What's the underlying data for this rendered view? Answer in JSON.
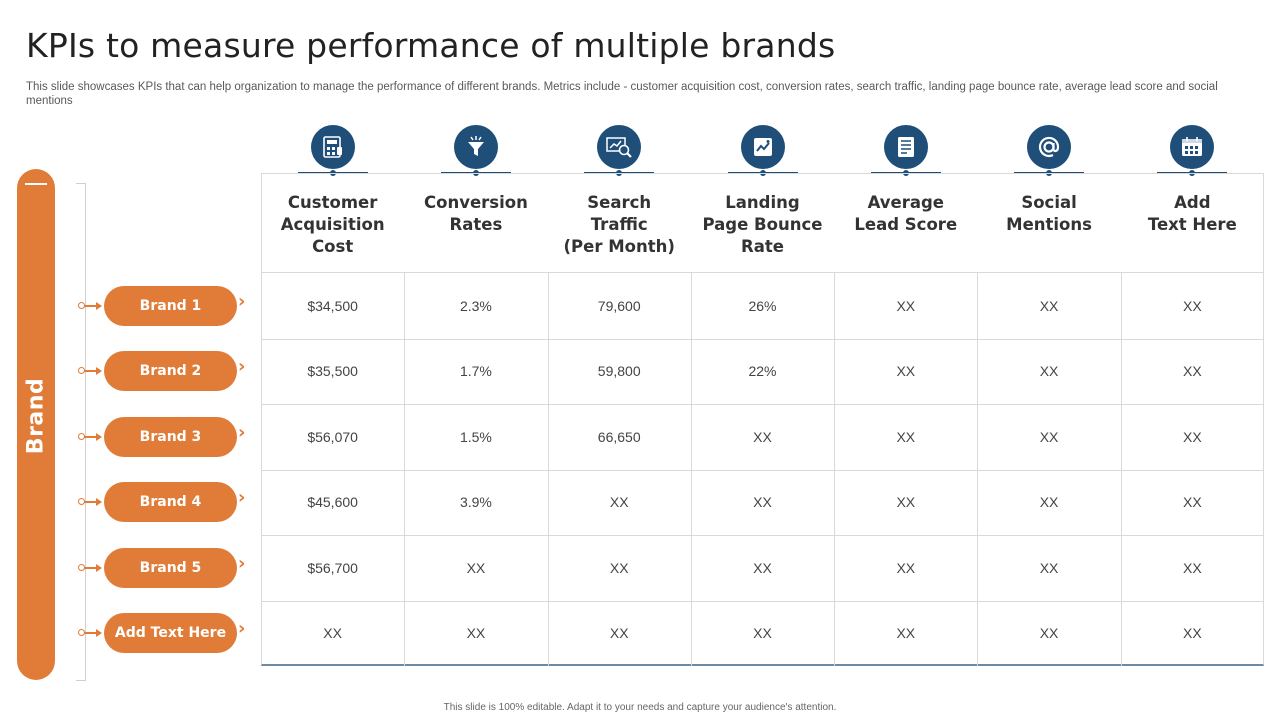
{
  "title": "KPIs to measure performance of multiple brands",
  "subtitle": "This slide showcases KPIs that can help organization to manage the performance of different brands. Metrics include - customer acquisition cost, conversion rates, search traffic, landing page bounce rate, average lead score and social mentions",
  "brand_label": "Brand",
  "kpis": [
    {
      "label": "Customer\nAcquisition\nCost",
      "icon": "calculator-icon"
    },
    {
      "label": "Conversion\nRates",
      "icon": "funnel-icon"
    },
    {
      "label": "Search\nTraffic\n(Per Month)",
      "icon": "search-chart-icon"
    },
    {
      "label": "Landing\nPage Bounce\nRate",
      "icon": "landing-page-icon"
    },
    {
      "label": "Average\nLead Score",
      "icon": "scorecard-icon"
    },
    {
      "label": "Social\nMentions",
      "icon": "at-sign-icon"
    },
    {
      "label": "Add\nText Here",
      "icon": "calendar-calculator-icon"
    }
  ],
  "brands": [
    {
      "name": "Brand 1",
      "values": [
        "$34,500",
        "2.3%",
        "79,600",
        "26%",
        "XX",
        "XX",
        "XX"
      ]
    },
    {
      "name": "Brand 2",
      "values": [
        "$35,500",
        "1.7%",
        "59,800",
        "22%",
        "XX",
        "XX",
        "XX"
      ]
    },
    {
      "name": "Brand 3",
      "values": [
        "$56,070",
        "1.5%",
        "66,650",
        "XX",
        "XX",
        "XX",
        "XX"
      ]
    },
    {
      "name": "Brand 4",
      "values": [
        "$45,600",
        "3.9%",
        "XX",
        "XX",
        "XX",
        "XX",
        "XX"
      ]
    },
    {
      "name": "Brand 5",
      "values": [
        "$56,700",
        "XX",
        "XX",
        "XX",
        "XX",
        "XX",
        "XX"
      ]
    },
    {
      "name": "Add Text Here",
      "values": [
        "XX",
        "XX",
        "XX",
        "XX",
        "XX",
        "XX",
        "XX"
      ]
    }
  ],
  "footer": "This slide is 100% editable. Adapt it to your needs and capture your audience's attention.",
  "colors": {
    "accent": "#e07c38",
    "icon_bg": "#1f4e79"
  }
}
